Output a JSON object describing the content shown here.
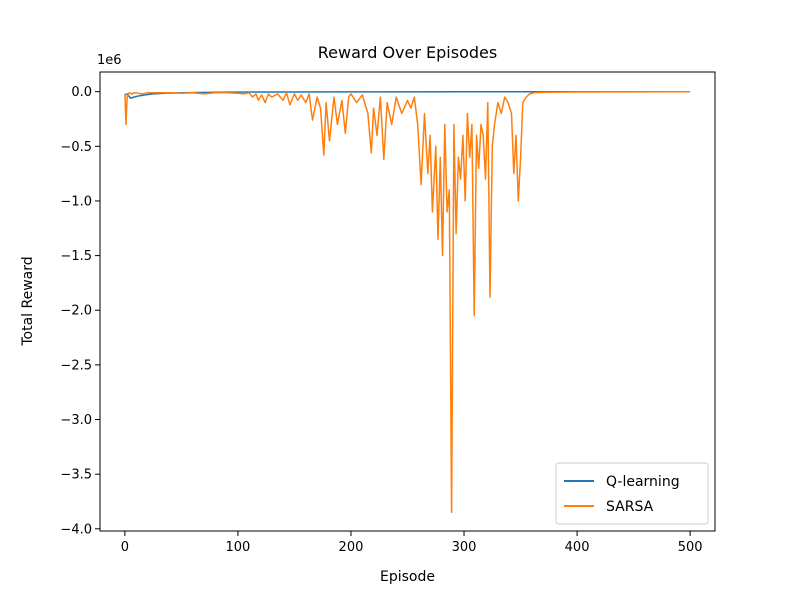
{
  "chart_data": {
    "type": "line",
    "title": "Reward Over Episodes",
    "xlabel": "Episode",
    "ylabel": "Total Reward",
    "y_offset_label": "1e6",
    "xlim": [
      -22,
      522
    ],
    "ylim": [
      -4.02,
      0.18
    ],
    "x_ticks": [
      0,
      100,
      200,
      300,
      400,
      500
    ],
    "x_tick_labels": [
      "0",
      "100",
      "200",
      "300",
      "400",
      "500"
    ],
    "y_ticks": [
      0.0,
      -0.5,
      -1.0,
      -1.5,
      -2.0,
      -2.5,
      -3.0,
      -3.5,
      -4.0
    ],
    "y_tick_labels": [
      "0.0",
      "−0.5",
      "−1.0",
      "−1.5",
      "−2.0",
      "−2.5",
      "−3.0",
      "−3.5",
      "−4.0"
    ],
    "grid": false,
    "legend_position": "lower-right",
    "series": [
      {
        "name": "Q-learning",
        "color": "#1f77b4",
        "x": [
          0,
          2,
          5,
          8,
          12,
          18,
          25,
          35,
          50,
          80,
          120,
          200,
          300,
          400,
          500
        ],
        "y": [
          -0.03,
          -0.02,
          -0.06,
          -0.05,
          -0.04,
          -0.03,
          -0.02,
          -0.015,
          -0.01,
          -0.005,
          -0.003,
          -0.002,
          -0.001,
          -0.001,
          0.0
        ]
      },
      {
        "name": "SARSA",
        "color": "#ff7f0e",
        "x": [
          0,
          1,
          2,
          3,
          4,
          6,
          8,
          10,
          15,
          20,
          30,
          40,
          50,
          60,
          70,
          80,
          90,
          100,
          105,
          110,
          113,
          116,
          118,
          121,
          124,
          127,
          130,
          135,
          140,
          143,
          146,
          150,
          153,
          156,
          160,
          163,
          166,
          170,
          173,
          176,
          178,
          181,
          185,
          188,
          192,
          195,
          198,
          200,
          205,
          210,
          215,
          218,
          220,
          223,
          226,
          229,
          232,
          236,
          240,
          245,
          250,
          253,
          256,
          259,
          262,
          265,
          268,
          270,
          272,
          275,
          277,
          279,
          281,
          283,
          285,
          287,
          289,
          291,
          293,
          295,
          297,
          299,
          301,
          303,
          305,
          307,
          309,
          311,
          313,
          315,
          317,
          319,
          321,
          323,
          325,
          327,
          330,
          333,
          336,
          339,
          342,
          344,
          346,
          348,
          350,
          352,
          355,
          358,
          362,
          370,
          400,
          450,
          500
        ],
        "y": [
          -0.02,
          -0.3,
          -0.05,
          -0.02,
          -0.01,
          -0.02,
          -0.01,
          -0.01,
          -0.02,
          -0.01,
          -0.01,
          -0.01,
          -0.015,
          -0.01,
          -0.02,
          -0.01,
          -0.01,
          -0.015,
          -0.02,
          -0.01,
          -0.05,
          -0.02,
          -0.08,
          -0.03,
          -0.1,
          -0.02,
          -0.05,
          -0.02,
          -0.08,
          -0.01,
          -0.12,
          -0.02,
          -0.08,
          -0.03,
          -0.1,
          -0.02,
          -0.26,
          -0.05,
          -0.15,
          -0.58,
          -0.1,
          -0.45,
          -0.05,
          -0.3,
          -0.08,
          -0.38,
          -0.05,
          -0.02,
          -0.1,
          -0.03,
          -0.2,
          -0.56,
          -0.15,
          -0.4,
          -0.05,
          -0.62,
          -0.1,
          -0.3,
          -0.05,
          -0.2,
          -0.08,
          -0.15,
          -0.05,
          -0.3,
          -0.85,
          -0.2,
          -0.75,
          -0.4,
          -1.1,
          -0.5,
          -1.35,
          -0.6,
          -1.5,
          -0.3,
          -1.1,
          -0.9,
          -3.85,
          -0.3,
          -1.3,
          -0.6,
          -0.8,
          -0.4,
          -1.0,
          -0.2,
          -0.6,
          -0.3,
          -2.05,
          -0.4,
          -0.7,
          -0.3,
          -0.4,
          -0.8,
          -0.1,
          -1.88,
          -0.5,
          -0.3,
          -0.1,
          -0.2,
          -0.05,
          -0.1,
          -0.2,
          -0.75,
          -0.4,
          -1.0,
          -0.6,
          -0.1,
          -0.05,
          -0.02,
          -0.01,
          -0.005,
          -0.003,
          -0.002,
          -0.001
        ]
      }
    ]
  }
}
